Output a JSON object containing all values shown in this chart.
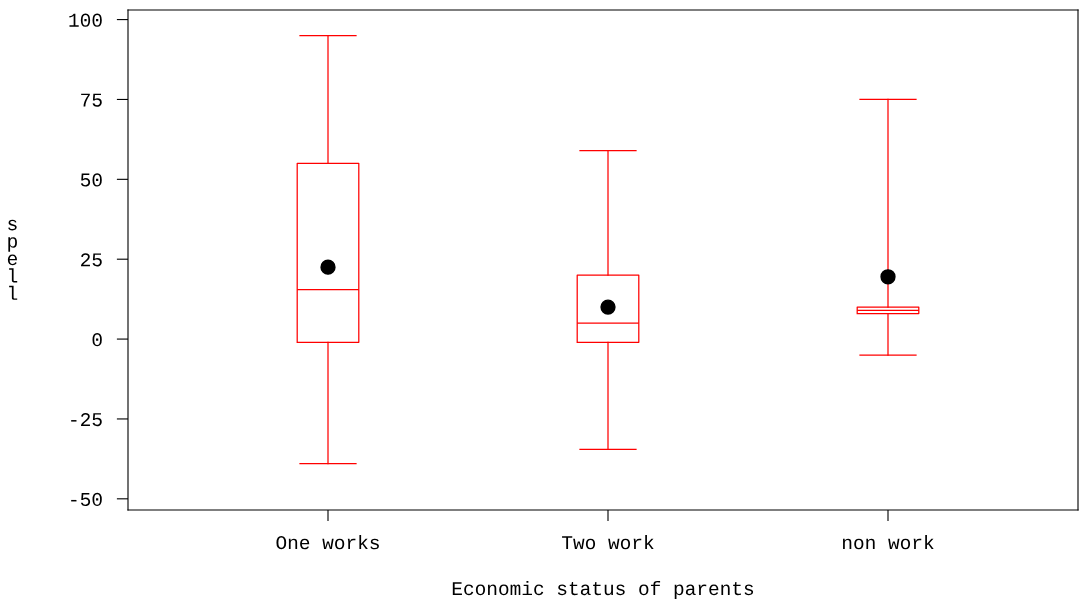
{
  "chart_data": {
    "type": "box",
    "xlabel": "Economic status of parents",
    "ylabel": "spell",
    "categories": [
      "One works",
      "Two work",
      "non work"
    ],
    "color": "#ff0000",
    "boxes": [
      {
        "low": -39,
        "q1": -1,
        "median": 15.5,
        "q3": 55,
        "high": 95,
        "mean": 22.5
      },
      {
        "low": -34.5,
        "q1": -1,
        "median": 5,
        "q3": 20,
        "high": 59,
        "mean": 10
      },
      {
        "low": -5,
        "q1": 8,
        "median": 9,
        "q3": 10,
        "high": 75,
        "mean": 19.5
      }
    ],
    "ylim": [
      -53.5,
      103
    ],
    "yticks": [
      -50,
      -25,
      0,
      25,
      50,
      75,
      100
    ],
    "grid": false
  }
}
